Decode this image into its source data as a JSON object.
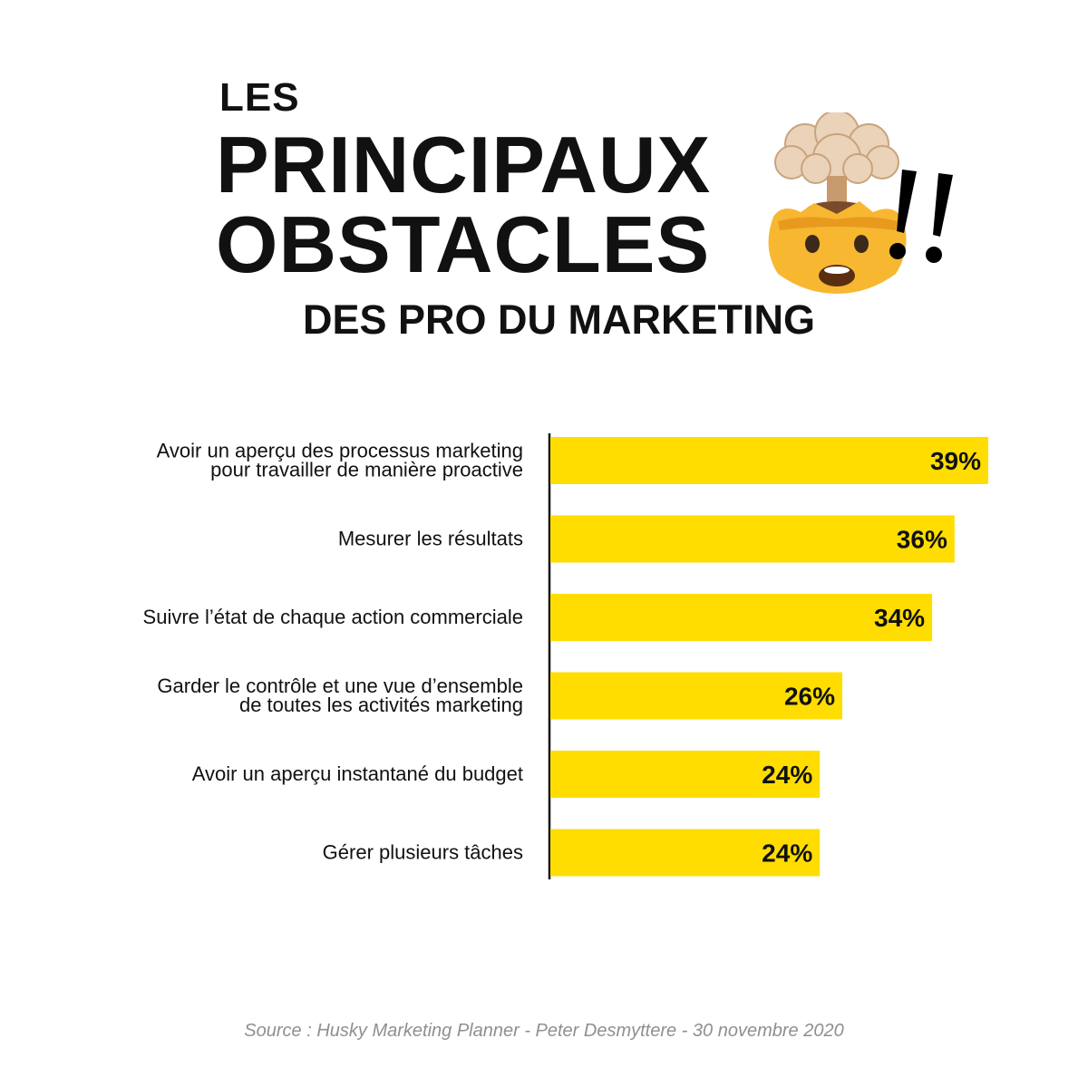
{
  "title": {
    "line1": "LES",
    "line2": "PRINCIPAUX",
    "line3": "OBSTACLES",
    "subtitle": "DES PRO DU MARKETING"
  },
  "icons": {
    "emoji": "exploding-head-emoji",
    "exclamation": "double-exclamation-mark"
  },
  "colors": {
    "bar": "#FFDD00",
    "text": "#111111",
    "axis": "#111111",
    "source": "#8f8f8f"
  },
  "chart_data": {
    "type": "bar",
    "orientation": "horizontal",
    "categories": [
      [
        "Avoir un aperçu des processus marketing",
        "pour travailler de manière proactive"
      ],
      [
        "Mesurer les résultats"
      ],
      [
        "Suivre l’état de chaque action commerciale"
      ],
      [
        "Garder le contrôle et une vue d’ensemble",
        "de toutes les activités marketing"
      ],
      [
        "Avoir un aperçu instantané du budget"
      ],
      [
        "Gérer plusieurs tâches"
      ]
    ],
    "values": [
      39,
      36,
      34,
      26,
      24,
      24
    ],
    "labels": [
      "39%",
      "36%",
      "34%",
      "26%",
      "24%",
      "24%"
    ],
    "xlim": [
      0,
      39
    ],
    "grid": false
  },
  "source": "Source : Husky Marketing Planner - Peter Desmyttere - 30 novembre 2020"
}
